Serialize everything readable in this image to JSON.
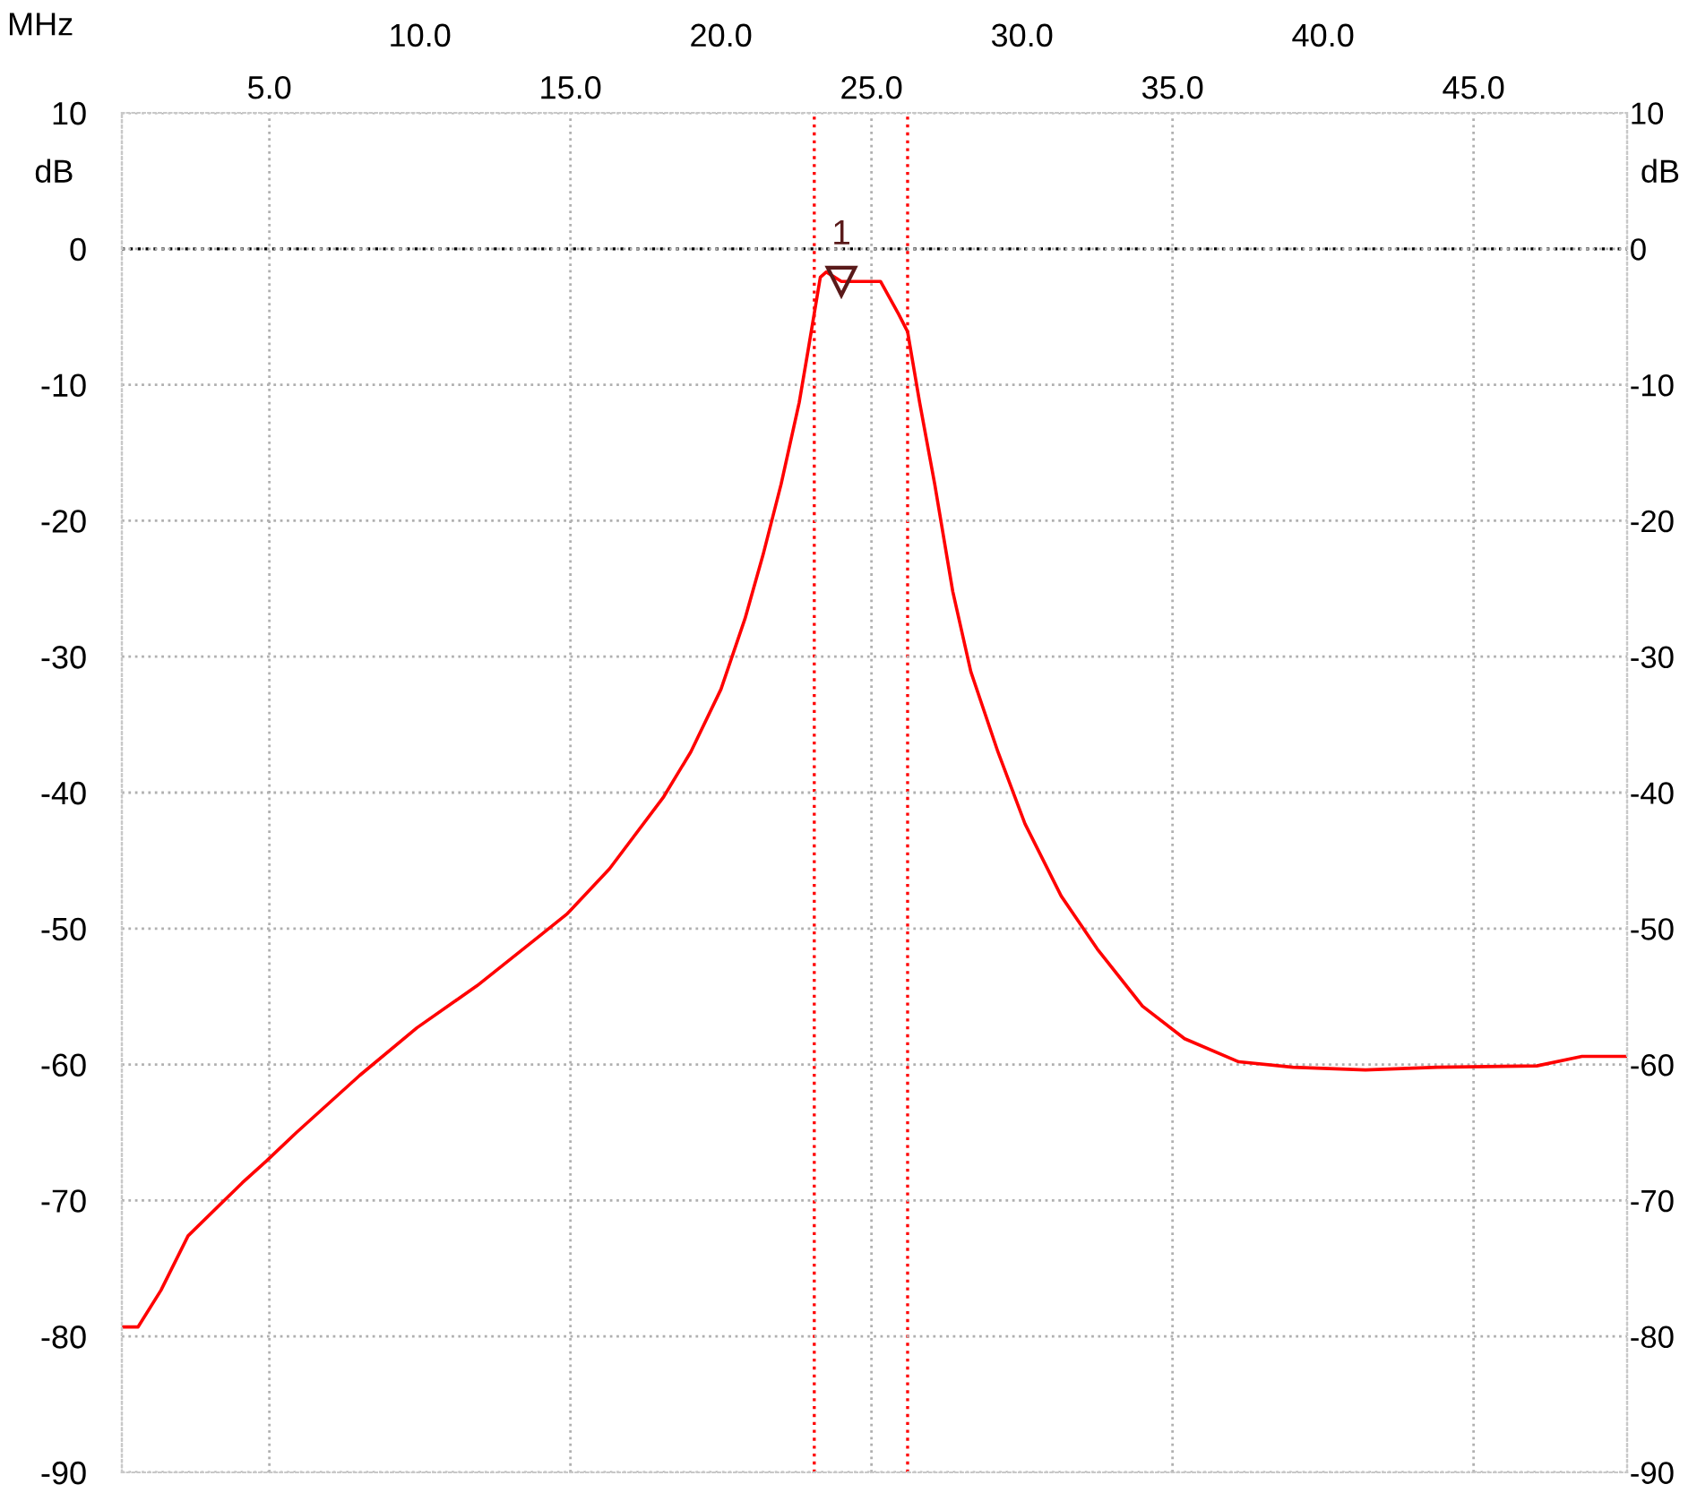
{
  "chart_data": {
    "type": "line",
    "xlabel": "MHz",
    "ylabel": "dB",
    "y2label": "dB",
    "x": [
      0.1,
      0.64,
      1.4,
      2.3,
      4.1,
      4.9,
      5.9,
      8.0,
      9.9,
      11.9,
      14.0,
      14.9,
      16.3,
      18.1,
      19.0,
      20.0,
      20.8,
      21.4,
      22.0,
      22.6,
      22.9,
      23.3,
      23.5,
      24.0,
      25.3,
      25.9,
      26.2,
      26.6,
      27.1,
      27.7,
      28.3,
      29.2,
      30.1,
      31.3,
      32.5,
      34.0,
      35.4,
      37.2,
      39.0,
      41.4,
      43.8,
      47.1,
      48.6,
      50.1
    ],
    "series": [
      {
        "color": "#ff0000",
        "values": [
          -79.3,
          -79.3,
          -76.6,
          -72.6,
          -68.7,
          -67.1,
          -65.0,
          -60.8,
          -57.3,
          -54.2,
          -50.5,
          -48.9,
          -45.6,
          -40.3,
          -37.0,
          -32.4,
          -27.2,
          -22.5,
          -17.3,
          -11.3,
          -7.4,
          -2.1,
          -1.7,
          -2.4,
          -2.4,
          -4.8,
          -6.1,
          -11.3,
          -17.3,
          -25.2,
          -31.1,
          -37.0,
          -42.3,
          -47.6,
          -51.5,
          -55.7,
          -58.1,
          -59.8,
          -60.2,
          -60.4,
          -60.2,
          -60.1,
          -59.4,
          -59.4
        ]
      }
    ],
    "xlim": [
      0.1,
      50.1
    ],
    "xticks": [
      {
        "value": 5,
        "label": "5.0"
      },
      {
        "value": 15,
        "label": "15.0"
      },
      {
        "value": 25,
        "label": "25.0"
      },
      {
        "value": 35,
        "label": "35.0"
      },
      {
        "value": 45,
        "label": "45.0"
      }
    ],
    "x2lim": [
      0.1,
      50.1
    ],
    "x2ticks": [
      {
        "value": 10,
        "label": "10.0"
      },
      {
        "value": 20,
        "label": "20.0"
      },
      {
        "value": 30,
        "label": "30.0"
      },
      {
        "value": 40,
        "label": "40.0"
      }
    ],
    "ylim": [
      -90,
      10
    ],
    "yticks": [
      -90,
      -80,
      -70,
      -60,
      -50,
      -40,
      -30,
      -20,
      -10,
      0,
      10
    ],
    "y2lim": [
      -90,
      10
    ],
    "y2ticks": [
      -90,
      -80,
      -70,
      -60,
      -50,
      -40,
      -30,
      -20,
      -10,
      0,
      10
    ],
    "ref_lines": [
      {
        "axis": "y",
        "value": 0,
        "color": "#000000",
        "line_style": "dotted"
      },
      {
        "axis": "x",
        "value": 23.1,
        "color": "#ff0000",
        "line_style": "dotted"
      },
      {
        "axis": "x",
        "value": 26.2,
        "color": "#ff0000",
        "line_style": "dotted"
      }
    ],
    "annotations": [
      {
        "text": "1",
        "x": 24.0,
        "y": -2.4
      }
    ],
    "grid": true,
    "marker": "none",
    "line_style": "solid"
  }
}
